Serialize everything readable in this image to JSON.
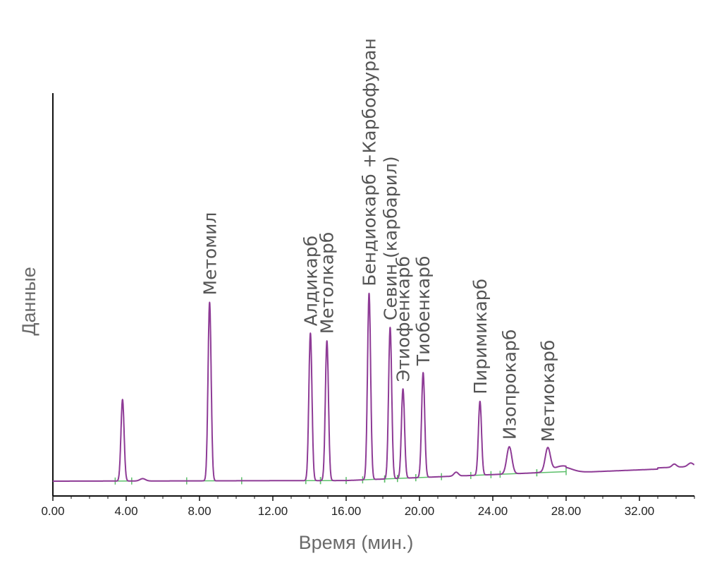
{
  "chart_data": {
    "type": "line",
    "xlabel": "Время (мин.)",
    "ylabel": "Данные",
    "xlim": [
      0,
      35
    ],
    "ylim": [
      0,
      100
    ],
    "x_ticks": [
      "0.00",
      "4.00",
      "8.00",
      "12.00",
      "16.00",
      "20.00",
      "24.00",
      "28.00",
      "32.00"
    ],
    "grid": false,
    "line_color": "#8e3b96",
    "baseline_color": "#5cbf6a",
    "peaks": [
      {
        "label": "",
        "x": 3.8,
        "height": 21
      },
      {
        "label": "Метомил",
        "x": 8.55,
        "height": 46
      },
      {
        "label": "Алдикарб",
        "x": 14.05,
        "height": 38
      },
      {
        "label": "Метолкарб",
        "x": 14.95,
        "height": 36
      },
      {
        "label": "Бендиокарб +Карбофуран",
        "x": 17.25,
        "height": 48
      },
      {
        "label": "Севин (карбарил)",
        "x": 18.4,
        "height": 39
      },
      {
        "label": "Этиофенкарб",
        "x": 19.1,
        "height": 23
      },
      {
        "label": "Тиобенкарб",
        "x": 20.2,
        "height": 27
      },
      {
        "label": "Пиримикарб",
        "x": 23.3,
        "height": 19
      },
      {
        "label": "Изопрокарб",
        "x": 24.9,
        "height": 7
      },
      {
        "label": "Метиокарб",
        "x": 27.0,
        "height": 6
      }
    ]
  }
}
